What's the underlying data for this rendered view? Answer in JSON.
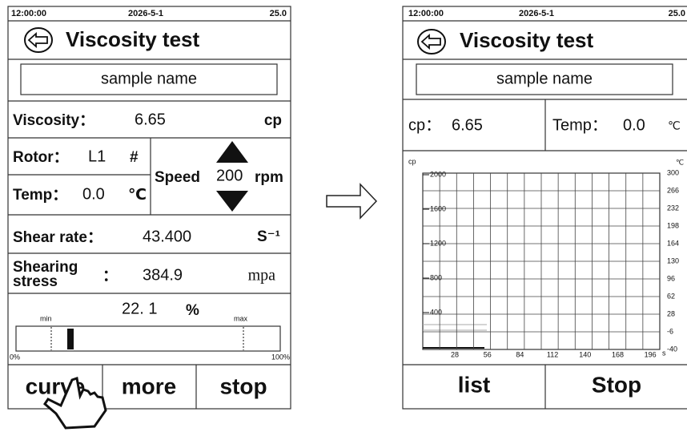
{
  "left": {
    "status": {
      "time": "12:00:00",
      "date": "2026-5-1",
      "temp": "25.0"
    },
    "title": "Viscosity test",
    "sample": "sample name",
    "viscosity": {
      "label": "Viscosity：",
      "value": "6.65",
      "unit": "cp"
    },
    "rotor": {
      "label": "Rotor：",
      "value": "L1",
      "unit": "#"
    },
    "temp": {
      "label": "Temp：",
      "value": "0.0",
      "unit": "℃"
    },
    "speed": {
      "label": "Speed",
      "value": "200",
      "unit": "rpm"
    },
    "shear_rate": {
      "label": "Shear rate：",
      "value": "43.400",
      "unit": "S⁻¹"
    },
    "shearing_stress": {
      "label": [
        "Shearing",
        "stress"
      ],
      "colon": "：",
      "value": "384.9",
      "unit": "mpa"
    },
    "progress": {
      "value": "22. 1",
      "unit": "%",
      "min": "min",
      "max": "max",
      "start": "0%",
      "end": "100%"
    },
    "buttons": [
      "curve",
      "more",
      "stop"
    ]
  },
  "right": {
    "status": {
      "time": "12:00:00",
      "date": "2026-5-1",
      "temp": "25.0"
    },
    "title": "Viscosity test",
    "sample": "sample name",
    "cp": {
      "label": "cp：",
      "value": "6.65"
    },
    "temp": {
      "label": "Temp：",
      "value": "0.0",
      "unit": "℃"
    },
    "chart": {
      "y_unit": "cp",
      "y2_unit": "℃",
      "x_unit": "s",
      "yticks": [
        2000,
        1600,
        1200,
        800,
        400
      ],
      "y2ticks": [
        300,
        266,
        232,
        198,
        164,
        130,
        96,
        62,
        28,
        -6,
        -40
      ],
      "xticks": [
        28,
        56,
        84,
        112,
        140,
        168,
        196
      ]
    },
    "buttons": [
      "list",
      "Stop"
    ]
  }
}
